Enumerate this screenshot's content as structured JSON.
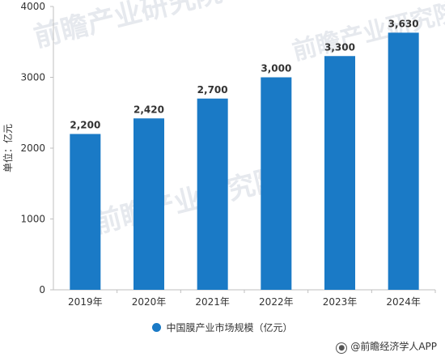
{
  "watermarks": [
    "前瞻产业研究院",
    "前瞻产业研究院",
    "前瞻产业研究院"
  ],
  "legend": {
    "label": "中国膜产业市场规模（亿元）",
    "color": "#1a7ac6"
  },
  "source": "@前瞻经济学人APP",
  "chart_data": {
    "type": "bar",
    "categories": [
      "2019年",
      "2020年",
      "2021年",
      "2022年",
      "2023年",
      "2024年"
    ],
    "series": [
      {
        "name": "中国膜产业市场规模（亿元）",
        "values": [
          2200,
          2420,
          2700,
          3000,
          3300,
          3630
        ]
      }
    ],
    "data_labels": [
      "2,200",
      "2,420",
      "2,700",
      "3,000",
      "3,300",
      "3,630"
    ],
    "ylabel": "单位：亿元",
    "yticks": [
      "0",
      "1000",
      "2000",
      "3000",
      "4000"
    ],
    "ylim": [
      0,
      4000
    ],
    "grid": false,
    "legend_position": "bottom",
    "bar_color": "#1a7ac6"
  }
}
